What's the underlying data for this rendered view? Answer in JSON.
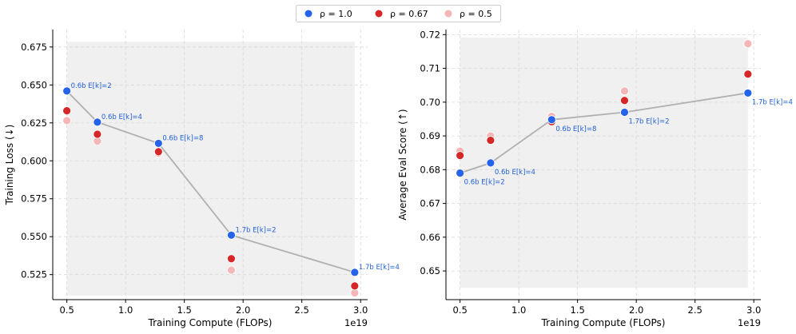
{
  "legend": [
    {
      "label": "ρ = 1.0",
      "color": "#2563eb"
    },
    {
      "label": "ρ = 0.67",
      "color": "#d62728"
    },
    {
      "label": "ρ = 0.5",
      "color": "#f4b6b6"
    }
  ],
  "chart_data": [
    {
      "type": "scatter",
      "xlabel": "Training Compute (FLOPs)",
      "ylabel": "Training Loss (↓)",
      "x_offset_label": "1e19",
      "xlim": [
        0.38,
        3.06
      ],
      "ylim": [
        0.5085,
        0.6865
      ],
      "xticks": [
        0.5,
        1.0,
        1.5,
        2.0,
        2.5,
        3.0
      ],
      "xtick_labels": [
        "0.5",
        "1.0",
        "1.5",
        "2.0",
        "2.5",
        "3.0"
      ],
      "yticks": [
        0.525,
        0.55,
        0.575,
        0.6,
        0.625,
        0.65,
        0.675
      ],
      "ytick_labels": [
        "0.525",
        "0.550",
        "0.575",
        "0.600",
        "0.625",
        "0.650",
        "0.675"
      ],
      "shade": {
        "x_from": 0.5,
        "x_to": 2.95,
        "y_top": 0.6785,
        "side": "above"
      },
      "series": [
        {
          "name": "ρ = 0.5",
          "color": "#f4b6b6",
          "points": [
            [
              0.5,
              0.6265
            ],
            [
              0.76,
              0.613
            ],
            [
              1.28,
              0.605
            ],
            [
              1.9,
              0.528
            ],
            [
              2.95,
              0.513
            ]
          ]
        },
        {
          "name": "ρ = 0.67",
          "color": "#d62728",
          "points": [
            [
              0.5,
              0.633
            ],
            [
              0.76,
              0.6175
            ],
            [
              1.28,
              0.606
            ],
            [
              1.9,
              0.5355
            ],
            [
              2.95,
              0.5175
            ]
          ]
        },
        {
          "name": "ρ = 1.0",
          "color": "#2563eb",
          "connected": true,
          "points": [
            [
              0.5,
              0.646
            ],
            [
              0.76,
              0.6255
            ],
            [
              1.28,
              0.6115
            ],
            [
              1.9,
              0.551
            ],
            [
              2.95,
              0.5265
            ]
          ],
          "labels": [
            "0.6b E[k]=2",
            "0.6b E[k]=4",
            "0.6b E[k]=8",
            "1.7b E[k]=2",
            "1.7b E[k]=4"
          ],
          "label_side": "above"
        }
      ]
    },
    {
      "type": "scatter",
      "xlabel": "Training Compute (FLOPs)",
      "ylabel": "Average Eval Score (↑)",
      "x_offset_label": "1e19",
      "xlim": [
        0.38,
        3.06
      ],
      "ylim": [
        0.6415,
        0.7215
      ],
      "xticks": [
        0.5,
        1.0,
        1.5,
        2.0,
        2.5,
        3.0
      ],
      "xtick_labels": [
        "0.5",
        "1.0",
        "1.5",
        "2.0",
        "2.5",
        "3.0"
      ],
      "yticks": [
        0.65,
        0.66,
        0.67,
        0.68,
        0.69,
        0.7,
        0.71,
        0.72
      ],
      "ytick_labels": [
        "0.65",
        "0.66",
        "0.67",
        "0.68",
        "0.69",
        "0.70",
        "0.71",
        "0.72"
      ],
      "shade": {
        "x_from": 0.5,
        "x_to": 2.95,
        "y_bottom": 0.645,
        "side": "below"
      },
      "series": [
        {
          "name": "ρ = 0.5",
          "color": "#f4b6b6",
          "points": [
            [
              0.5,
              0.6855
            ],
            [
              0.76,
              0.69
            ],
            [
              1.28,
              0.6958
            ],
            [
              1.9,
              0.7033
            ],
            [
              2.95,
              0.7173
            ]
          ]
        },
        {
          "name": "ρ = 0.67",
          "color": "#d62728",
          "points": [
            [
              0.5,
              0.6842
            ],
            [
              0.76,
              0.6887
            ],
            [
              1.28,
              0.6942
            ],
            [
              1.9,
              0.7005
            ],
            [
              2.95,
              0.7083
            ]
          ]
        },
        {
          "name": "ρ = 1.0",
          "color": "#2563eb",
          "connected": true,
          "points": [
            [
              0.5,
              0.679
            ],
            [
              0.76,
              0.682
            ],
            [
              1.28,
              0.6948
            ],
            [
              1.9,
              0.697
            ],
            [
              2.95,
              0.7027
            ]
          ],
          "labels": [
            "0.6b E[k]=2",
            "0.6b E[k]=4",
            "0.6b E[k]=8",
            "1.7b E[k]=2",
            "1.7b E[k]=4"
          ],
          "label_side": "below"
        }
      ]
    }
  ]
}
